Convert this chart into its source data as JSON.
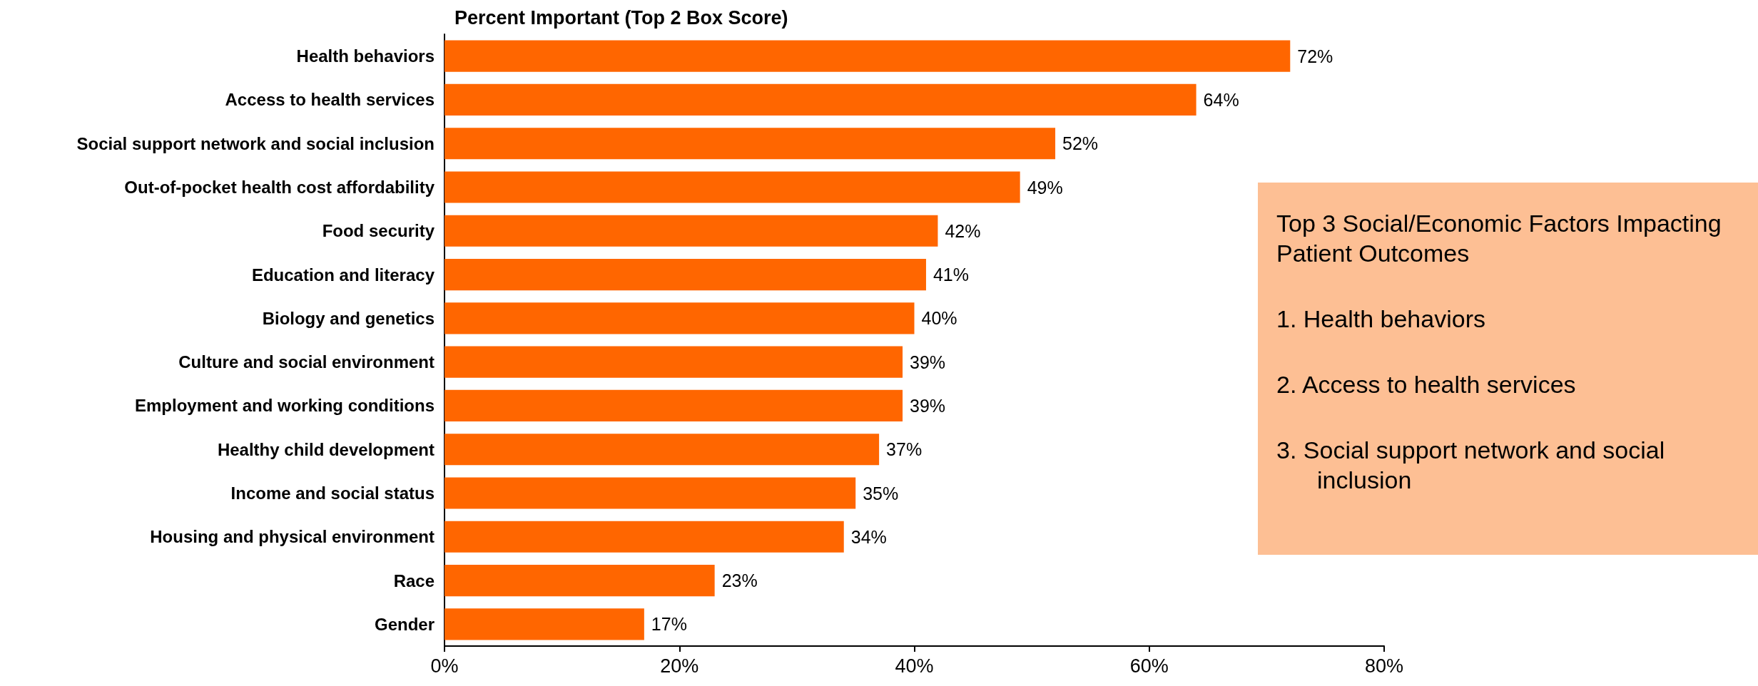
{
  "chart_data": {
    "type": "bar",
    "orientation": "horizontal",
    "title": "Percent Important (Top 2 Box Score)",
    "categories": [
      "Health behaviors",
      "Access to health services",
      "Social support network and social inclusion",
      "Out-of-pocket health cost affordability",
      "Food security",
      "Education and literacy",
      "Biology and genetics",
      "Culture and social environment",
      "Employment and working conditions",
      "Healthy child development",
      "Income and social status",
      "Housing and physical environment",
      "Race",
      "Gender"
    ],
    "values": [
      72,
      64,
      52,
      49,
      42,
      41,
      40,
      39,
      39,
      37,
      35,
      34,
      23,
      17
    ],
    "value_labels": [
      "72%",
      "64%",
      "52%",
      "49%",
      "42%",
      "41%",
      "40%",
      "39%",
      "39%",
      "37%",
      "35%",
      "34%",
      "23%",
      "17%"
    ],
    "color": "#ff6600",
    "xlim": [
      0,
      80
    ],
    "xticks": [
      {
        "value": 0,
        "label": "0%"
      },
      {
        "value": 20,
        "label": "20%"
      },
      {
        "value": 40,
        "label": "40%"
      },
      {
        "value": 60,
        "label": "60%"
      },
      {
        "value": 80,
        "label": "80%"
      }
    ],
    "grid": false,
    "annotations": [
      "Top 3 Social/Economic Factors Impacting Patient Outcomes",
      "1.  Health behaviors",
      "2.  Access to health services",
      "3.  Social support network and social inclusion"
    ]
  }
}
